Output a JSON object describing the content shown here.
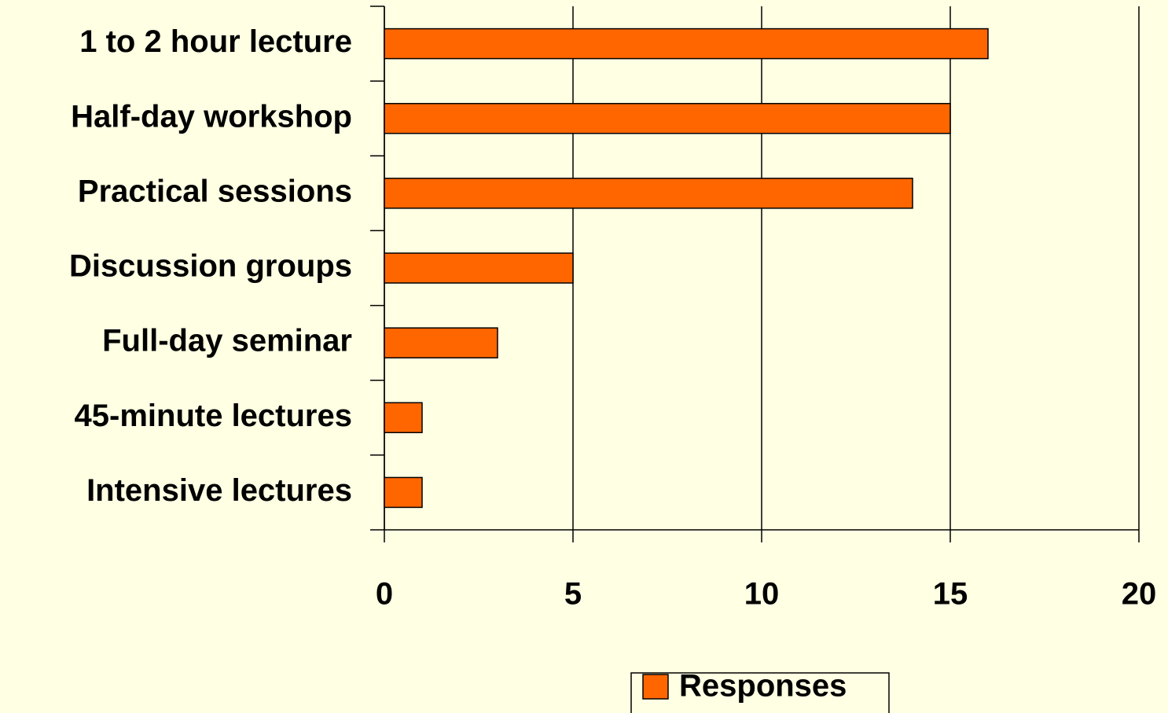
{
  "chart_data": {
    "type": "bar",
    "orientation": "horizontal",
    "categories": [
      "1 to 2 hour lecture",
      "Half-day workshop",
      "Practical sessions",
      "Discussion groups",
      "Full-day seminar",
      "45-minute lectures",
      "Intensive lectures"
    ],
    "series": [
      {
        "name": "Responses",
        "color": "#ff6600",
        "values": [
          16,
          15,
          14,
          5,
          3,
          1,
          1
        ]
      }
    ],
    "xlim": [
      0,
      20
    ],
    "xticks": [
      0,
      5,
      10,
      15,
      20
    ],
    "grid": true,
    "legend": "bottom"
  }
}
